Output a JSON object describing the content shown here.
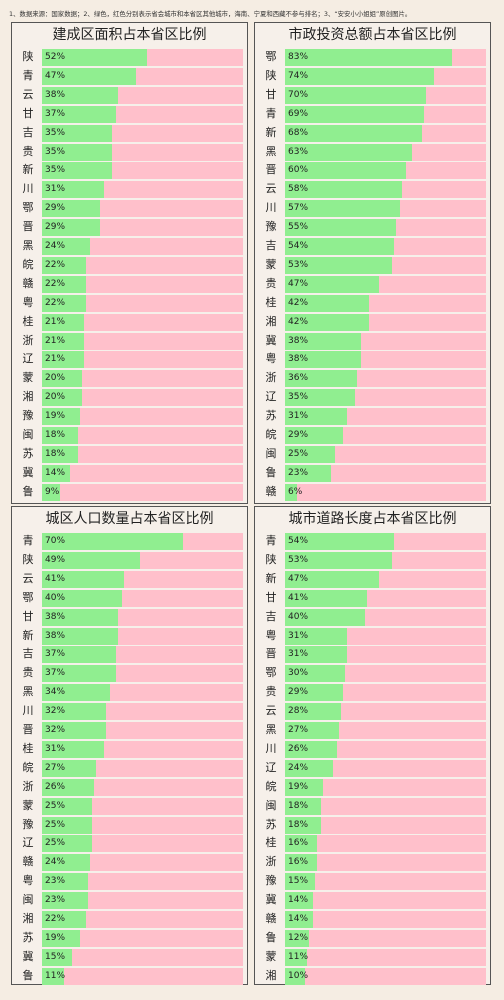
{
  "note": "1、数据来源：国家数据；2、绿色，红色分别表示省会城市和本省区其他城市，海南、宁夏和西藏不参与排名；3、“安安小小姐姐”原创图片。",
  "colors": {
    "capital": "#90ee90",
    "other": "#ffc0cb"
  },
  "chart_data": [
    {
      "type": "bar",
      "title": "建成区面积占本省区比例",
      "categories": [
        "陕",
        "青",
        "云",
        "甘",
        "吉",
        "贵",
        "新",
        "川",
        "鄂",
        "晋",
        "黑",
        "皖",
        "赣",
        "粤",
        "桂",
        "浙",
        "辽",
        "蒙",
        "湘",
        "豫",
        "闽",
        "苏",
        "冀",
        "鲁"
      ],
      "values": [
        52,
        47,
        38,
        37,
        35,
        35,
        35,
        31,
        29,
        29,
        24,
        22,
        22,
        22,
        21,
        21,
        21,
        20,
        20,
        19,
        18,
        18,
        14,
        9
      ],
      "labels": [
        "52%",
        "47%",
        "38%",
        "37%",
        "35%",
        "35%",
        "35%",
        "31%",
        "29%",
        "29%",
        "24%",
        "22%",
        "22%",
        "22%",
        "21%",
        "21%",
        "21%",
        "20%",
        "20%",
        "19%",
        "18%",
        "18%",
        "14%",
        "9%"
      ],
      "xlim": [
        0,
        100
      ]
    },
    {
      "type": "bar",
      "title": "市政投资总额占本省区比例",
      "categories": [
        "鄂",
        "陕",
        "甘",
        "青",
        "新",
        "黑",
        "晋",
        "云",
        "川",
        "豫",
        "吉",
        "蒙",
        "贵",
        "桂",
        "湘",
        "冀",
        "粤",
        "浙",
        "辽",
        "苏",
        "皖",
        "闽",
        "鲁",
        "赣"
      ],
      "values": [
        83,
        74,
        70,
        69,
        68,
        63,
        60,
        58,
        57,
        55,
        54,
        53,
        47,
        42,
        42,
        38,
        38,
        36,
        35,
        31,
        29,
        25,
        23,
        6
      ],
      "labels": [
        "83%",
        "74%",
        "70%",
        "69%",
        "68%",
        "63%",
        "60%",
        "58%",
        "57%",
        "55%",
        "54%",
        "53%",
        "47%",
        "42%",
        "42%",
        "38%",
        "38%",
        "36%",
        "35%",
        "31%",
        "29%",
        "25%",
        "23%",
        "6%"
      ],
      "xlim": [
        0,
        100
      ]
    },
    {
      "type": "bar",
      "title": "城区人口数量占本省区比例",
      "categories": [
        "青",
        "陕",
        "云",
        "鄂",
        "甘",
        "新",
        "吉",
        "贵",
        "黑",
        "川",
        "晋",
        "桂",
        "皖",
        "浙",
        "蒙",
        "豫",
        "辽",
        "赣",
        "粤",
        "闽",
        "湘",
        "苏",
        "冀",
        "鲁"
      ],
      "values": [
        70,
        49,
        41,
        40,
        38,
        38,
        37,
        37,
        34,
        32,
        32,
        31,
        27,
        26,
        25,
        25,
        25,
        24,
        23,
        23,
        22,
        19,
        15,
        11
      ],
      "labels": [
        "70%",
        "49%",
        "41%",
        "40%",
        "38%",
        "38%",
        "37%",
        "37%",
        "34%",
        "32%",
        "32%",
        "31%",
        "27%",
        "26%",
        "25%",
        "25%",
        "25%",
        "24%",
        "23%",
        "23%",
        "22%",
        "19%",
        "15%",
        "11%"
      ],
      "xlim": [
        0,
        100
      ]
    },
    {
      "type": "bar",
      "title": "城市道路长度占本省区比例",
      "categories": [
        "青",
        "陕",
        "新",
        "甘",
        "吉",
        "粤",
        "晋",
        "鄂",
        "贵",
        "云",
        "黑",
        "川",
        "辽",
        "皖",
        "闽",
        "苏",
        "桂",
        "浙",
        "豫",
        "冀",
        "赣",
        "鲁",
        "蒙",
        "湘"
      ],
      "values": [
        54,
        53,
        47,
        41,
        40,
        31,
        31,
        30,
        29,
        28,
        27,
        26,
        24,
        19,
        18,
        18,
        16,
        16,
        15,
        14,
        14,
        12,
        11,
        10
      ],
      "labels": [
        "54%",
        "53%",
        "47%",
        "41%",
        "40%",
        "31%",
        "31%",
        "30%",
        "29%",
        "28%",
        "27%",
        "26%",
        "24%",
        "19%",
        "18%",
        "18%",
        "16%",
        "16%",
        "15%",
        "14%",
        "14%",
        "12%",
        "11%",
        "10%"
      ],
      "xlim": [
        0,
        100
      ]
    }
  ]
}
